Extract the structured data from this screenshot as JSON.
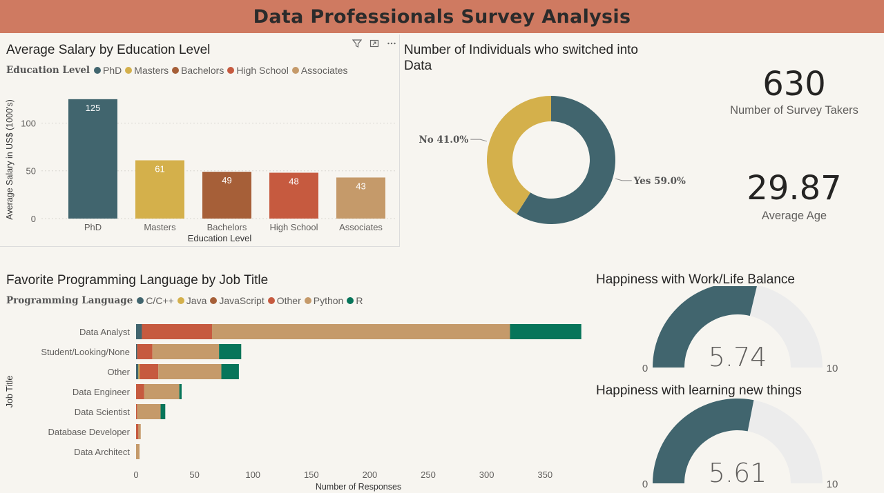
{
  "page": {
    "title": "Data Professionals Survey Analysis"
  },
  "colors": {
    "phd": "#41656e",
    "masters": "#d4b04b",
    "bachelors": "#a65f38",
    "high_school": "#c65a3f",
    "associates": "#c59a6a",
    "c_cpp": "#41656e",
    "java": "#d4b04b",
    "javascript": "#a65f38",
    "other": "#c65a3f",
    "python": "#c59a6a",
    "r": "#07755a",
    "gauge_track": "#ececec"
  },
  "icons": {
    "filter": "filter-icon",
    "focus": "focus-mode-icon",
    "more": "more-options-icon"
  },
  "salary": {
    "title": "Average Salary by Education Level",
    "legend_title": "Education Level",
    "legend": [
      "PhD",
      "Masters",
      "Bachelors",
      "High School",
      "Associates"
    ]
  },
  "switched": {
    "title_line1": "Number of Individuals who switched into",
    "title_line2": "Data"
  },
  "kpis": {
    "survey_takers": {
      "value": "630",
      "label": "Number of Survey Takers"
    },
    "avg_age": {
      "value": "29.87",
      "label": "Average Age"
    }
  },
  "languages": {
    "title": "Favorite Programming Language by Job Title",
    "legend_title": "Programming Language",
    "legend": [
      "C/C++",
      "Java",
      "JavaScript",
      "Other",
      "Python",
      "R"
    ]
  },
  "gauges": {
    "work_life": {
      "title": "Happiness with Work/Life Balance",
      "value": "5.74",
      "min_label": "0",
      "max_label": "10"
    },
    "learning": {
      "title": "Happiness with learning new things",
      "value": "5.61",
      "min_label": "0",
      "max_label": "10"
    }
  },
  "chart_data": [
    {
      "type": "bar",
      "title": "Average Salary by Education Level",
      "categories": [
        "PhD",
        "Masters",
        "Bachelors",
        "High School",
        "Associates"
      ],
      "values": [
        125,
        61,
        49,
        48,
        43
      ],
      "data_labels": [
        "125",
        "61",
        "49",
        "48",
        "43"
      ],
      "xlabel": "Education Level",
      "ylabel": "Average Salary in US$ (1000's)",
      "ylim": [
        0,
        135
      ],
      "yticks": [
        0,
        50,
        100
      ],
      "colors": [
        "#41656e",
        "#d4b04b",
        "#a65f38",
        "#c65a3f",
        "#c59a6a"
      ]
    },
    {
      "type": "pie",
      "subtype": "donut",
      "title": "Number of Individuals who switched into Data",
      "categories": [
        "Yes",
        "No"
      ],
      "values": [
        59.0,
        41.0
      ],
      "data_labels": [
        "Yes 59.0%",
        "No 41.0%"
      ],
      "colors": [
        "#41656e",
        "#d4b04b"
      ]
    },
    {
      "type": "bar",
      "orientation": "horizontal",
      "stacked": true,
      "title": "Favorite Programming Language by Job Title",
      "categories": [
        "Data Analyst",
        "Student/Looking/None",
        "Other",
        "Data Engineer",
        "Data Scientist",
        "Database Developer",
        "Data Architect"
      ],
      "series": [
        {
          "name": "C/C++",
          "values": [
            5,
            1,
            2,
            0,
            0,
            0,
            0
          ]
        },
        {
          "name": "Java",
          "values": [
            0,
            0,
            1,
            0,
            0,
            0,
            0
          ]
        },
        {
          "name": "JavaScript",
          "values": [
            0,
            0,
            0,
            0,
            0,
            0,
            0
          ]
        },
        {
          "name": "Other",
          "values": [
            60,
            13,
            16,
            7,
            1,
            2,
            0
          ]
        },
        {
          "name": "Python",
          "values": [
            255,
            57,
            54,
            30,
            20,
            2,
            3
          ]
        },
        {
          "name": "R",
          "values": [
            61,
            19,
            15,
            2,
            4,
            0,
            0
          ]
        }
      ],
      "xlabel": "Number of Responses",
      "ylabel": "Job Title",
      "xlim": [
        0,
        380
      ],
      "xticks": [
        0,
        50,
        100,
        150,
        200,
        250,
        300,
        350
      ]
    },
    {
      "type": "gauge",
      "title": "Happiness with Work/Life Balance",
      "value": 5.74,
      "min": 0,
      "max": 10
    },
    {
      "type": "gauge",
      "title": "Happiness with learning new things",
      "value": 5.61,
      "min": 0,
      "max": 10
    }
  ]
}
